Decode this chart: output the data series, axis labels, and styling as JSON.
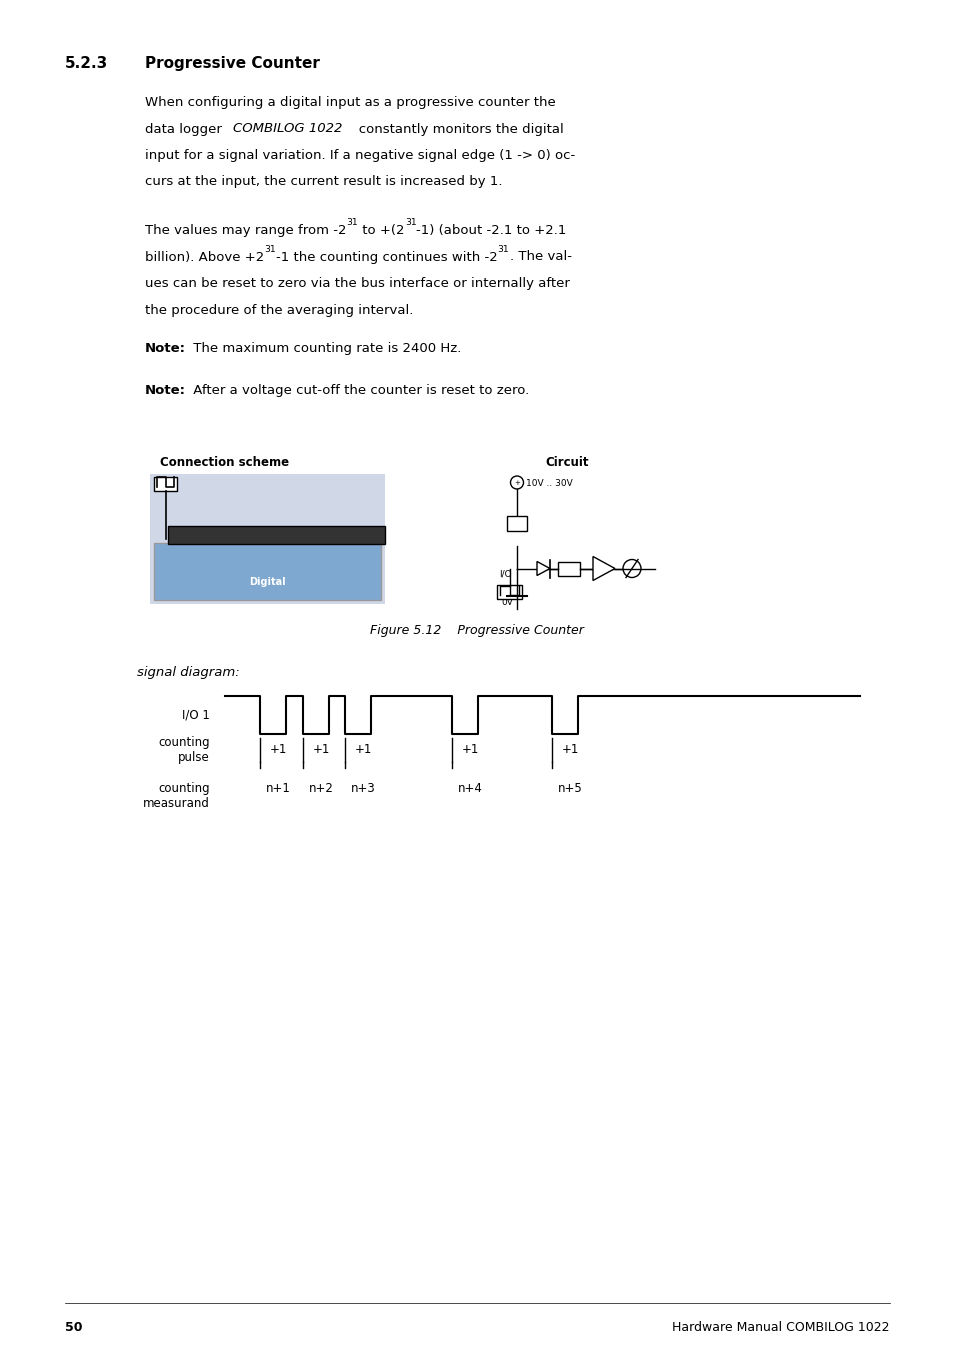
{
  "background_color": "#ffffff",
  "page_width": 9.54,
  "page_height": 13.51,
  "section_number": "5.2.3",
  "section_title": "Progressive Counter",
  "note1_bold": "Note:",
  "note1_text": " The maximum counting rate is 2400 Hz.",
  "note2_bold": "Note:",
  "note2_text": " After a voltage cut-off the counter is reset to zero.",
  "conn_scheme_label": "Connection scheme",
  "circuit_label": "Circuit",
  "figure_caption": "Figure 5.12    Progressive Counter",
  "signal_diagram_label": "signal diagram:",
  "io_label": "I/O 1",
  "counting_pulse_label": "counting\npulse",
  "counting_measurand_label": "counting\nmeasurand",
  "pulse_labels": [
    "+1",
    "+1",
    "+1",
    "+1",
    "+1"
  ],
  "measurand_labels": [
    "n+1",
    "n+2",
    "n+3",
    "n+4",
    "n+5"
  ],
  "page_number": "50",
  "footer_text": "Hardware Manual COMBILOG 1022",
  "font_color": "#000000"
}
